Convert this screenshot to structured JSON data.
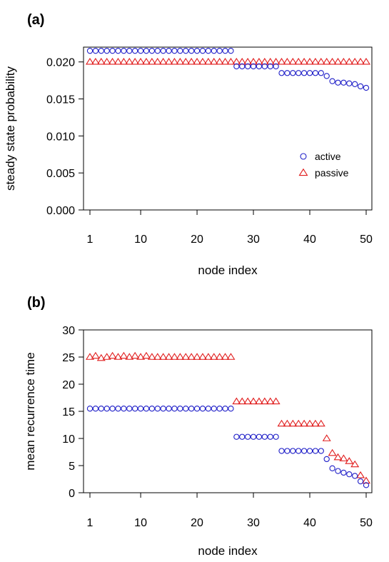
{
  "chart_data": [
    {
      "type": "scatter",
      "panel_label": "(a)",
      "xlabel": "node index",
      "ylabel": "steady state probability",
      "xlim": [
        1,
        50
      ],
      "ylim": [
        0.0,
        0.022
      ],
      "xticks": [
        1,
        10,
        20,
        30,
        40,
        50
      ],
      "yticks": [
        "0.000",
        "0.005",
        "0.010",
        "0.015",
        "0.020"
      ],
      "legend": {
        "placement": "bottom-right",
        "entries": [
          "active",
          "passive"
        ]
      },
      "colors": {
        "active": "#1f1fc8",
        "passive": "#e01b1b"
      },
      "series": [
        {
          "name": "active",
          "marker": "circle",
          "values": [
            0.0215,
            0.0215,
            0.0215,
            0.0215,
            0.0215,
            0.0215,
            0.0215,
            0.0215,
            0.0215,
            0.0215,
            0.0215,
            0.0215,
            0.0215,
            0.0215,
            0.0215,
            0.0215,
            0.0215,
            0.0215,
            0.0215,
            0.0215,
            0.0215,
            0.0215,
            0.0215,
            0.0215,
            0.0215,
            0.0215,
            0.0194,
            0.0194,
            0.0194,
            0.0194,
            0.0194,
            0.0194,
            0.0194,
            0.0194,
            0.0185,
            0.0185,
            0.0185,
            0.0185,
            0.0185,
            0.0185,
            0.0185,
            0.0185,
            0.0181,
            0.0174,
            0.0172,
            0.0172,
            0.0171,
            0.017,
            0.0167,
            0.0165
          ]
        },
        {
          "name": "passive",
          "marker": "triangle",
          "values": [
            0.02,
            0.02,
            0.02,
            0.02,
            0.02,
            0.02,
            0.02,
            0.02,
            0.02,
            0.02,
            0.02,
            0.02,
            0.02,
            0.02,
            0.02,
            0.02,
            0.02,
            0.02,
            0.02,
            0.02,
            0.02,
            0.02,
            0.02,
            0.02,
            0.02,
            0.02,
            0.02,
            0.02,
            0.02,
            0.02,
            0.02,
            0.02,
            0.02,
            0.02,
            0.02,
            0.02,
            0.02,
            0.02,
            0.02,
            0.02,
            0.02,
            0.02,
            0.02,
            0.02,
            0.02,
            0.02,
            0.02,
            0.02,
            0.02,
            0.02
          ]
        }
      ]
    },
    {
      "type": "scatter",
      "panel_label": "(b)",
      "xlabel": "node index",
      "ylabel": "mean recurrence time",
      "xlim": [
        1,
        50
      ],
      "ylim": [
        0,
        30
      ],
      "xticks": [
        1,
        10,
        20,
        30,
        40,
        50
      ],
      "yticks": [
        "0",
        "5",
        "10",
        "15",
        "20",
        "25",
        "30"
      ],
      "colors": {
        "active": "#1f1fc8",
        "passive": "#e01b1b"
      },
      "series": [
        {
          "name": "active",
          "marker": "circle",
          "values": [
            15.5,
            15.5,
            15.5,
            15.5,
            15.5,
            15.5,
            15.5,
            15.5,
            15.5,
            15.5,
            15.5,
            15.5,
            15.5,
            15.5,
            15.5,
            15.5,
            15.5,
            15.5,
            15.5,
            15.5,
            15.5,
            15.5,
            15.5,
            15.5,
            15.5,
            15.5,
            10.3,
            10.3,
            10.3,
            10.3,
            10.3,
            10.3,
            10.3,
            10.3,
            7.7,
            7.7,
            7.7,
            7.7,
            7.7,
            7.7,
            7.7,
            7.7,
            6.2,
            4.5,
            4.0,
            3.7,
            3.4,
            3.1,
            2.1,
            1.4
          ]
        },
        {
          "name": "passive",
          "marker": "triangle",
          "values": [
            25.0,
            25.2,
            24.8,
            25.0,
            25.2,
            25.0,
            25.2,
            25.0,
            25.2,
            25.0,
            25.2,
            25.0,
            25.0,
            25.0,
            25.0,
            25.0,
            25.0,
            25.0,
            25.0,
            25.0,
            25.0,
            25.0,
            25.0,
            25.0,
            25.0,
            25.0,
            16.8,
            16.8,
            16.8,
            16.8,
            16.8,
            16.8,
            16.8,
            16.8,
            12.7,
            12.7,
            12.7,
            12.7,
            12.7,
            12.7,
            12.7,
            12.7,
            10.0,
            7.3,
            6.5,
            6.3,
            5.8,
            5.2,
            3.2,
            2.2
          ]
        }
      ]
    }
  ]
}
